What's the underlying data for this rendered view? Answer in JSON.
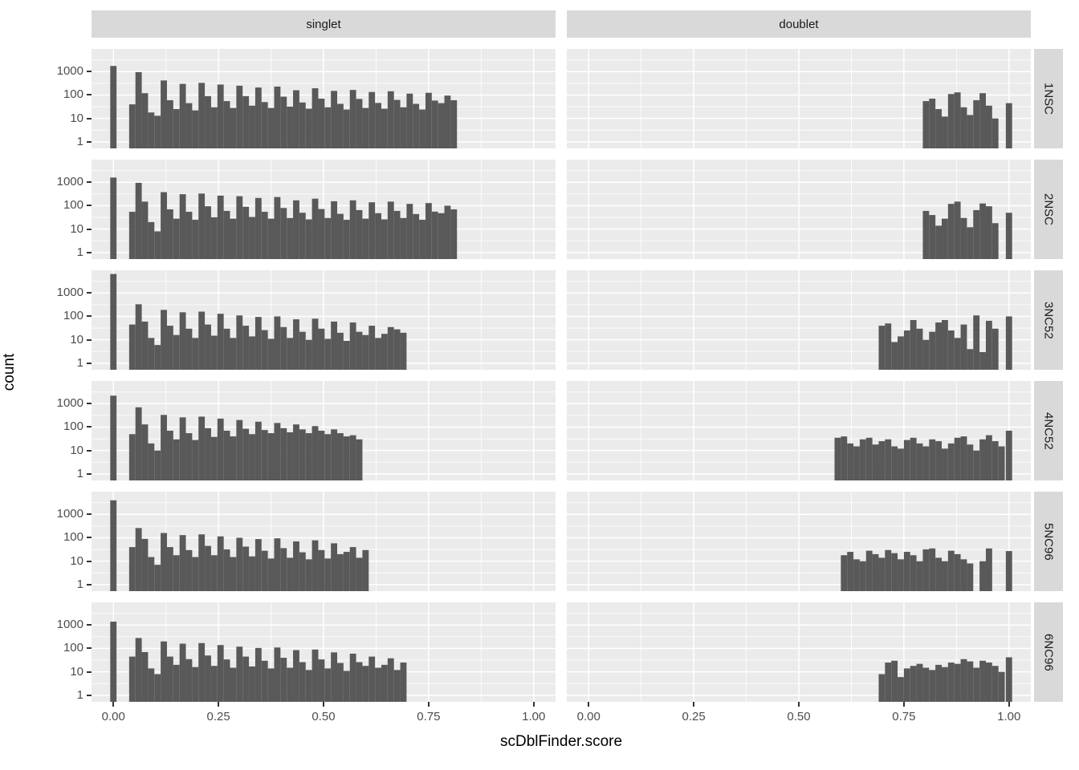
{
  "figure": {
    "kind": "faceted histogram (ggplot2 style)",
    "colors": {
      "bar": "#595959",
      "panel_background": "#ebebeb",
      "grid_line": "#ffffff",
      "strip_background": "#d9d9d9",
      "strip_text": "#1a1a1a",
      "axis_text": "#4d4d4d",
      "axis_title": "#000000",
      "tick_mark": "#333333"
    }
  },
  "axis": {
    "x": {
      "title": "scDblFinder.score",
      "ticks": [
        "0.00",
        "0.25",
        "0.50",
        "0.75",
        "1.00"
      ],
      "tick_values": [
        0,
        0.25,
        0.5,
        0.75,
        1.0
      ]
    },
    "y": {
      "title": "count",
      "ticks": [
        "1000",
        "100",
        "10",
        "1"
      ],
      "tick_values": [
        1000,
        100,
        10,
        1
      ]
    }
  },
  "facets": {
    "columns": [
      "singlet",
      "doublet"
    ],
    "rows": [
      "1NSC",
      "2NSC",
      "3NC52",
      "4NC52",
      "5NC96",
      "6NC96"
    ]
  },
  "chart_data": {
    "type": "bar",
    "subtype": "histogram",
    "title": "",
    "xlabel": "scDblFinder.score",
    "ylabel": "count",
    "y_scale": "log10",
    "xlim": [
      -0.052,
      1.052
    ],
    "ylim_log10": [
      -0.28,
      3.97
    ],
    "x_major_gridlines": [
      0,
      0.25,
      0.5,
      0.75,
      1.0
    ],
    "x_minor_gridlines": [
      0.125,
      0.375,
      0.625,
      0.875
    ],
    "y_gridlines_log10_major": [
      0,
      1,
      2,
      3
    ],
    "y_gridlines_log10_minor": [
      0.5,
      1.5,
      2.5,
      3.5
    ],
    "bin_width": 0.015,
    "legend": "none",
    "panels": [
      {
        "row": "1NSC",
        "col": "singlet",
        "runs": [
          {
            "start": -0.0075,
            "counts": [
              1750
            ]
          },
          {
            "start": 0.0375,
            "counts": [
              40,
              950,
              120,
              18,
              13,
              420,
              60,
              25,
              300,
              45,
              22,
              330,
              90,
              30,
              280,
              55,
              28,
              250,
              90,
              35,
              210,
              50,
              28,
              230,
              85,
              32,
              160,
              48,
              26,
              195,
              70,
              30,
              150,
              42,
              24,
              165,
              68,
              28,
              135,
              46,
              26,
              145,
              62,
              30,
              115,
              42,
              24,
              125,
              58,
              45,
              95,
              60
            ]
          }
        ]
      },
      {
        "row": "1NSC",
        "col": "doublet",
        "runs": [
          {
            "start": 0.795,
            "counts": [
              55,
              70,
              25,
              12,
              110,
              130,
              30,
              14,
              60,
              120,
              35,
              10
            ]
          },
          {
            "start": 0.9925,
            "counts": [
              45
            ]
          }
        ]
      },
      {
        "row": "2NSC",
        "col": "singlet",
        "runs": [
          {
            "start": -0.0075,
            "counts": [
              1600
            ]
          },
          {
            "start": 0.0375,
            "counts": [
              55,
              950,
              150,
              20,
              8,
              380,
              70,
              28,
              310,
              55,
              25,
              330,
              95,
              32,
              270,
              60,
              28,
              255,
              90,
              33,
              215,
              55,
              28,
              235,
              80,
              30,
              170,
              50,
              26,
              200,
              72,
              30,
              155,
              45,
              25,
              170,
              65,
              28,
              140,
              48,
              26,
              150,
              60,
              30,
              120,
              44,
              25,
              130,
              56,
              48,
              100,
              70
            ]
          }
        ]
      },
      {
        "row": "2NSC",
        "col": "doublet",
        "runs": [
          {
            "start": 0.795,
            "counts": [
              60,
              40,
              14,
              28,
              120,
              150,
              30,
              12,
              65,
              125,
              95,
              18
            ]
          },
          {
            "start": 0.9925,
            "counts": [
              50
            ]
          }
        ]
      },
      {
        "row": "3NC52",
        "col": "singlet",
        "runs": [
          {
            "start": -0.0075,
            "counts": [
              6500
            ]
          },
          {
            "start": 0.0375,
            "counts": [
              45,
              330,
              60,
              12,
              6,
              190,
              40,
              16,
              150,
              30,
              12,
              160,
              45,
              15,
              130,
              30,
              12,
              110,
              40,
              14,
              95,
              26,
              11,
              100,
              35,
              12,
              75,
              22,
              10,
              80,
              30,
              11,
              60,
              20,
              9,
              55,
              22,
              16,
              40,
              12,
              18,
              35,
              28,
              20
            ]
          }
        ]
      },
      {
        "row": "3NC52",
        "col": "doublet",
        "runs": [
          {
            "start": 0.69,
            "counts": [
              40,
              50,
              8,
              14,
              25,
              70,
              30,
              10,
              22,
              55,
              70,
              25,
              12,
              45,
              4,
              110,
              3,
              65,
              30
            ]
          },
          {
            "start": 0.9925,
            "counts": [
              100
            ]
          }
        ]
      },
      {
        "row": "4NC52",
        "col": "singlet",
        "runs": [
          {
            "start": -0.0075,
            "counts": [
              2200
            ]
          },
          {
            "start": 0.0375,
            "counts": [
              50,
              700,
              130,
              20,
              10,
              330,
              70,
              30,
              260,
              55,
              28,
              280,
              90,
              38,
              230,
              70,
              40,
              200,
              85,
              50,
              170,
              75,
              55,
              150,
              90,
              60,
              130,
              80,
              55,
              110,
              70,
              50,
              80,
              55,
              40,
              45,
              30
            ]
          }
        ]
      },
      {
        "row": "4NC52",
        "col": "doublet",
        "runs": [
          {
            "start": 0.585,
            "counts": [
              35,
              40,
              20,
              15,
              30,
              35,
              18,
              25,
              30,
              15,
              12,
              28,
              35,
              20,
              15,
              30,
              25,
              12,
              20,
              35,
              40,
              18,
              10,
              30,
              45,
              25,
              15
            ]
          },
          {
            "start": 0.9925,
            "counts": [
              70
            ]
          }
        ]
      },
      {
        "row": "5NC96",
        "col": "singlet",
        "runs": [
          {
            "start": -0.0075,
            "counts": [
              4000
            ]
          },
          {
            "start": 0.0375,
            "counts": [
              40,
              260,
              90,
              15,
              7,
              160,
              40,
              18,
              130,
              30,
              15,
              140,
              45,
              18,
              115,
              32,
              15,
              100,
              42,
              16,
              88,
              28,
              13,
              95,
              36,
              14,
              70,
              24,
              12,
              78,
              30,
              13,
              58,
              20,
              25,
              40,
              14,
              30
            ]
          }
        ]
      },
      {
        "row": "5NC96",
        "col": "doublet",
        "runs": [
          {
            "start": 0.6,
            "counts": [
              18,
              25,
              12,
              10,
              28,
              20,
              14,
              30,
              22,
              12,
              25,
              18,
              10,
              32,
              35,
              14,
              10,
              28,
              20,
              12,
              8,
              0,
              10,
              35
            ]
          },
          {
            "start": 0.9925,
            "counts": [
              27
            ]
          }
        ]
      },
      {
        "row": "6NC96",
        "col": "singlet",
        "runs": [
          {
            "start": -0.0075,
            "counts": [
              1400
            ]
          },
          {
            "start": 0.0375,
            "counts": [
              45,
              280,
              70,
              14,
              8,
              200,
              45,
              20,
              160,
              35,
              16,
              170,
              50,
              18,
              140,
              34,
              15,
              120,
              45,
              17,
              105,
              30,
              14,
              110,
              40,
              15,
              85,
              26,
              12,
              90,
              34,
              14,
              68,
              24,
              11,
              60,
              26,
              18,
              45,
              15,
              20,
              38,
              12,
              25
            ]
          }
        ]
      },
      {
        "row": "6NC96",
        "col": "doublet",
        "runs": [
          {
            "start": 0.69,
            "counts": [
              8,
              25,
              30,
              6,
              14,
              18,
              22,
              15,
              12,
              20,
              16,
              25,
              22,
              35,
              28,
              15,
              30,
              25,
              18,
              10
            ]
          },
          {
            "start": 0.9925,
            "counts": [
              42
            ]
          }
        ]
      }
    ]
  }
}
